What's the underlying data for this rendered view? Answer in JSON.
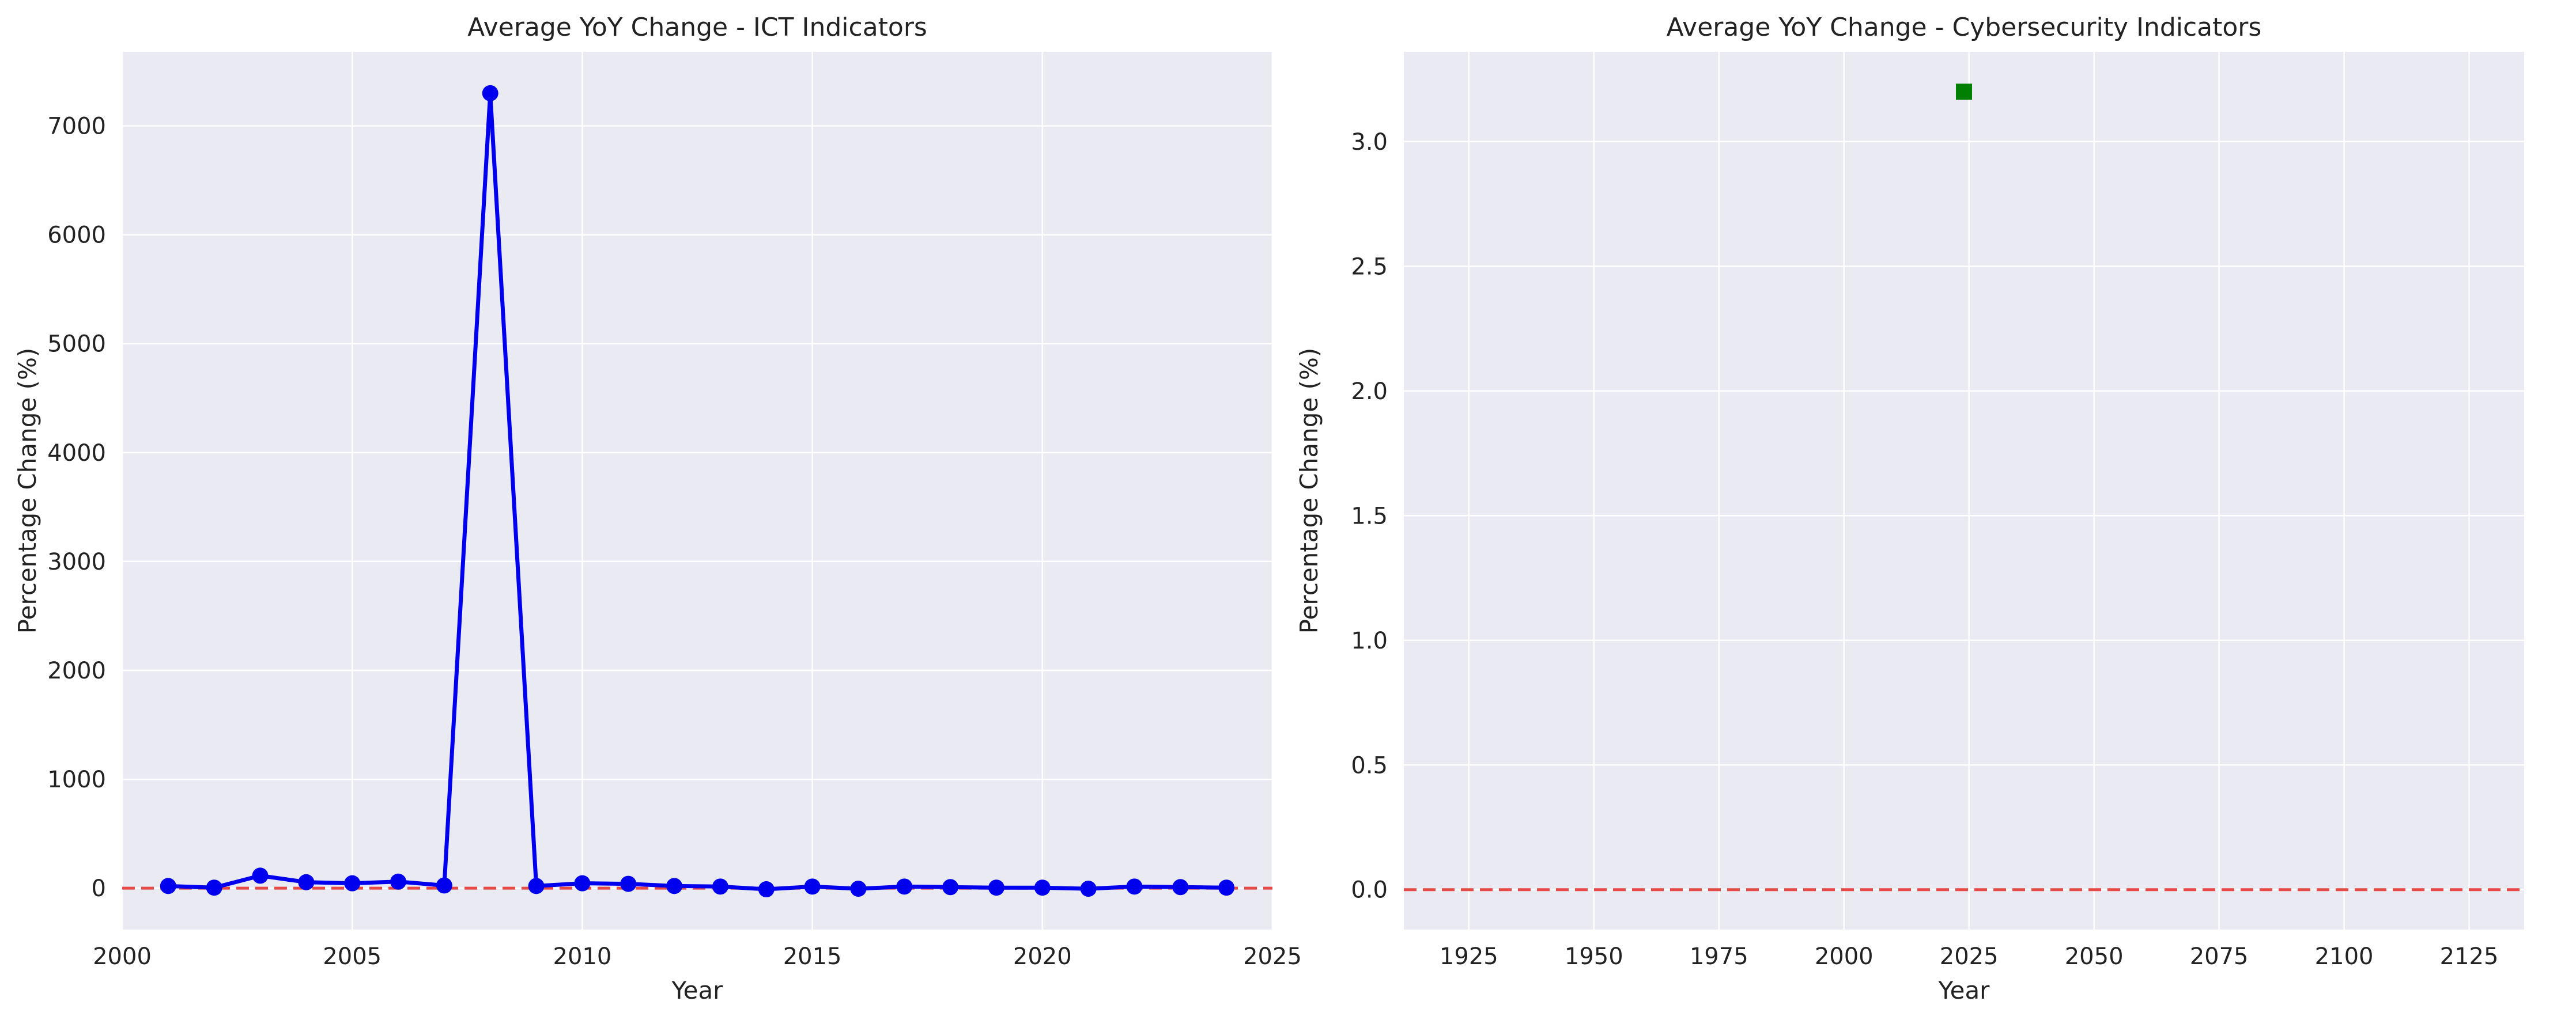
{
  "chart_data": [
    {
      "type": "line",
      "title": "Average YoY Change - ICT Indicators",
      "xlabel": "Year",
      "ylabel": "Percentage Change (%)",
      "xlim": [
        2000,
        2025
      ],
      "ylim": [
        -380,
        7680
      ],
      "xticks": [
        2000,
        2005,
        2010,
        2015,
        2020,
        2025
      ],
      "yticks": [
        0,
        1000,
        2000,
        3000,
        4000,
        5000,
        6000,
        7000
      ],
      "grid": true,
      "reference_line": {
        "y": 0,
        "style": "dashed",
        "color": "#e8413c"
      },
      "series": [
        {
          "color": "#0000ee",
          "marker": "circle",
          "x": [
            2001,
            2002,
            2003,
            2004,
            2005,
            2006,
            2007,
            2008,
            2009,
            2010,
            2011,
            2012,
            2013,
            2014,
            2015,
            2016,
            2017,
            2018,
            2019,
            2020,
            2021,
            2022,
            2023,
            2024
          ],
          "y": [
            20,
            5,
            115,
            55,
            45,
            60,
            25,
            7300,
            20,
            45,
            40,
            20,
            15,
            -10,
            15,
            -5,
            15,
            10,
            5,
            5,
            -5,
            15,
            10,
            5
          ]
        }
      ]
    },
    {
      "type": "scatter",
      "title": "Average YoY Change - Cybersecurity Indicators",
      "xlabel": "Year",
      "ylabel": "Percentage Change (%)",
      "xlim": [
        1912,
        2136
      ],
      "ylim": [
        -0.16,
        3.36
      ],
      "xticks": [
        1925,
        1950,
        1975,
        2000,
        2025,
        2050,
        2075,
        2100,
        2125
      ],
      "yticks": [
        0.0,
        0.5,
        1.0,
        1.5,
        2.0,
        2.5,
        3.0
      ],
      "ytick_labels": [
        "0.0",
        "0.5",
        "1.0",
        "1.5",
        "2.0",
        "2.5",
        "3.0"
      ],
      "grid": true,
      "reference_line": {
        "y": 0,
        "style": "dashed",
        "color": "#e8413c"
      },
      "series": [
        {
          "color": "#008000",
          "marker": "square",
          "x": [
            2024
          ],
          "y": [
            3.2
          ]
        }
      ]
    }
  ],
  "style": {
    "plot_background": "#eaeaf2",
    "grid_color": "#ffffff",
    "text_color": "#222222"
  }
}
